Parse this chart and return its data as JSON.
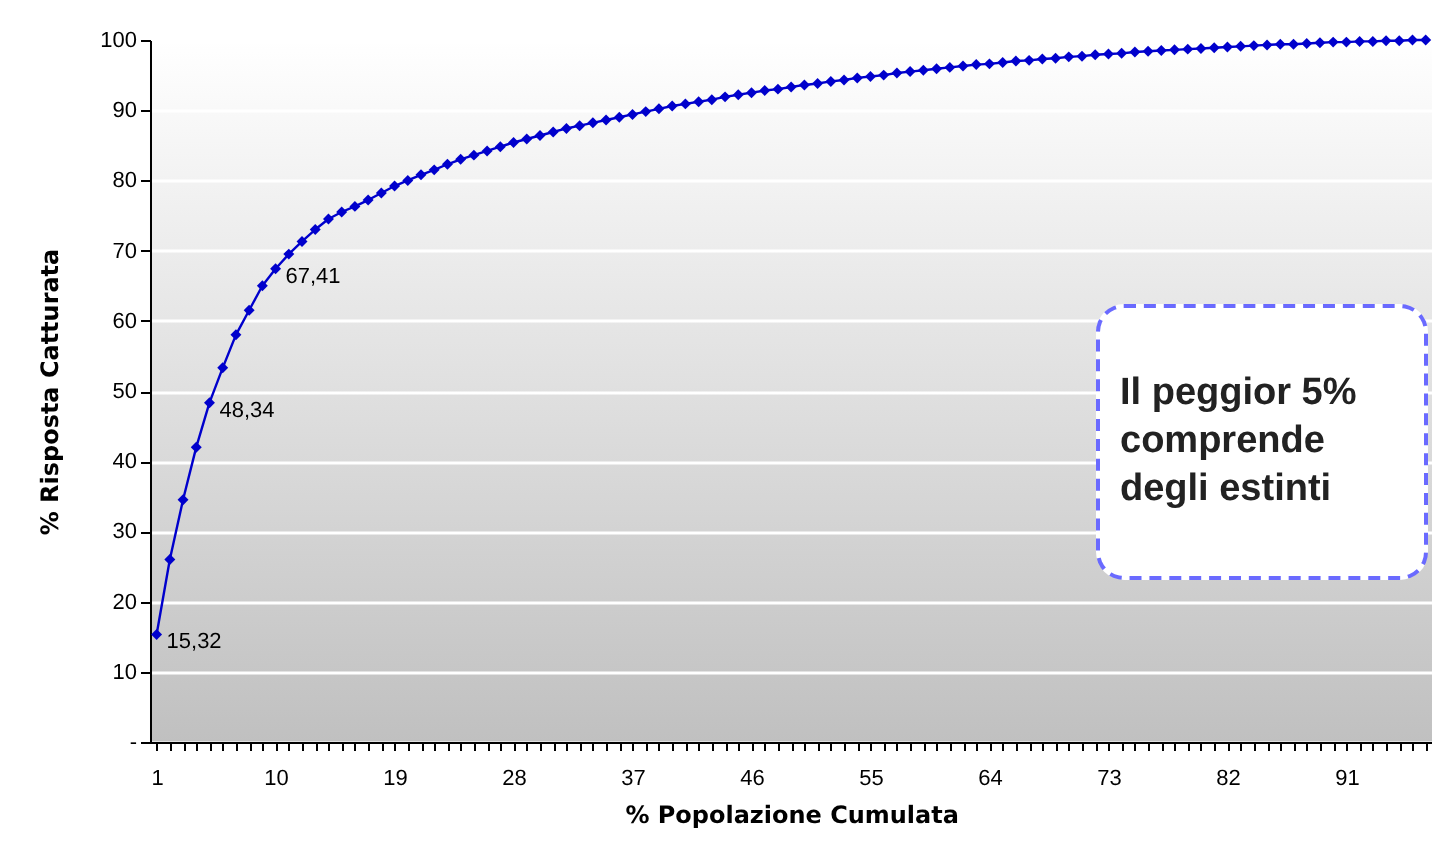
{
  "chart_data": {
    "type": "line",
    "xlabel": "%  Popolazione Cumulata",
    "ylabel": "% Risposta Catturata",
    "categories": [
      "1",
      null,
      null,
      null,
      null,
      null,
      null,
      null,
      null,
      "10",
      null,
      null,
      null,
      null,
      null,
      null,
      null,
      null,
      "19",
      null,
      null,
      null,
      null,
      null,
      null,
      null,
      null,
      "28",
      null,
      null,
      null,
      null,
      null,
      null,
      null,
      null,
      "37",
      null,
      null,
      null,
      null,
      null,
      null,
      null,
      null,
      "46",
      null,
      null,
      null,
      null,
      null,
      null,
      null,
      null,
      "55",
      null,
      null,
      null,
      null,
      null,
      null,
      null,
      null,
      "64",
      null,
      null,
      null,
      null,
      null,
      null,
      null,
      null,
      "73",
      null,
      null,
      null,
      null,
      null,
      null,
      null,
      null,
      "82",
      null,
      null,
      null,
      null,
      null,
      null,
      null,
      null,
      "91",
      null,
      null,
      null,
      null,
      null,
      null
    ],
    "values": [
      15.32,
      26,
      34.5,
      42,
      48.34,
      53.3,
      58,
      61.5,
      65,
      67.41,
      69.5,
      71.3,
      73,
      74.5,
      75.5,
      76.3,
      77.2,
      78.2,
      79.2,
      80,
      80.8,
      81.5,
      82.3,
      83,
      83.6,
      84.2,
      84.8,
      85.4,
      85.9,
      86.4,
      86.9,
      87.4,
      87.8,
      88.2,
      88.6,
      89,
      89.4,
      89.8,
      90.2,
      90.6,
      90.9,
      91.2,
      91.5,
      91.9,
      92.2,
      92.5,
      92.8,
      93,
      93.3,
      93.6,
      93.8,
      94.1,
      94.3,
      94.6,
      94.8,
      95,
      95.3,
      95.5,
      95.7,
      95.9,
      96.1,
      96.3,
      96.5,
      96.6,
      96.8,
      97,
      97.1,
      97.3,
      97.4,
      97.6,
      97.7,
      97.9,
      98,
      98.1,
      98.3,
      98.4,
      98.5,
      98.6,
      98.7,
      98.8,
      98.9,
      99,
      99.1,
      99.2,
      99.3,
      99.4,
      99.4,
      99.5,
      99.6,
      99.7,
      99.7,
      99.8,
      99.8,
      99.9,
      99.9,
      100,
      100
    ],
    "value_labels": [
      "15,32",
      null,
      null,
      null,
      "48,34",
      null,
      null,
      null,
      null,
      "67,41",
      null,
      null,
      null,
      null,
      null,
      null,
      null,
      null,
      null,
      null,
      null,
      null,
      null,
      null,
      null,
      null,
      null,
      null,
      null,
      null,
      null,
      null,
      null,
      null,
      null,
      null,
      null,
      null,
      null,
      null,
      null,
      null,
      null,
      null,
      null,
      null,
      null,
      null,
      null,
      null,
      null,
      null,
      null,
      null,
      null,
      null,
      null,
      null,
      null,
      null,
      null,
      null,
      null,
      null,
      null,
      null,
      null,
      null,
      null,
      null,
      null,
      null,
      null,
      null,
      null,
      null,
      null,
      null,
      null,
      null,
      null,
      null,
      null,
      null,
      null,
      null,
      null,
      null,
      null,
      null,
      null,
      null,
      null,
      null,
      null,
      null,
      null
    ],
    "color": "#0000cc",
    "marker": "diamond",
    "ylim": [
      0,
      100
    ],
    "yticks": [
      {
        "value": 0,
        "label": "-"
      },
      10,
      20,
      30,
      40,
      50,
      60,
      70,
      80,
      90,
      100
    ],
    "grid": "y",
    "annotations": [
      "Il peggior 5% comprende degli estinti"
    ]
  }
}
